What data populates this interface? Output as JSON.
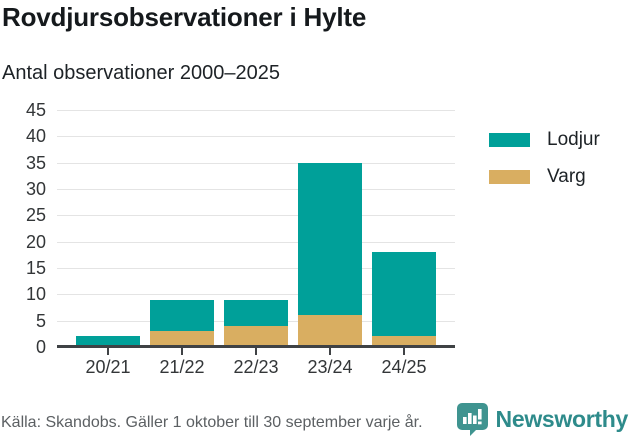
{
  "header": {
    "title": "Rovdjursobservationer i Hylte",
    "subtitle": "Antal observationer 2000–2025"
  },
  "chart_data": {
    "type": "bar",
    "stacked": true,
    "categories": [
      "20/21",
      "21/22",
      "22/23",
      "23/24",
      "24/25"
    ],
    "series": [
      {
        "name": "Lodjur",
        "color": "#00a099",
        "values": [
          2,
          6,
          5,
          29,
          16
        ]
      },
      {
        "name": "Varg",
        "color": "#d9ae61",
        "values": [
          0,
          3,
          4,
          6,
          2
        ]
      }
    ],
    "stack_totals": [
      2,
      9,
      9,
      35,
      18
    ],
    "title": "Rovdjursobservationer i Hylte",
    "subtitle": "Antal observationer 2000–2025",
    "xlabel": "",
    "ylabel": "",
    "ylim": [
      0,
      45
    ],
    "ytick_step": 5,
    "grid": true,
    "legend_position": "right",
    "axis_color": "#3f4245",
    "gridline_color": "#e4e4e4"
  },
  "footer": {
    "source": "Källa: Skandobs. Gäller 1 oktober till 30 september varje år.",
    "brand": "Newsworthy",
    "brand_color": "#2e8b8b",
    "brand_icon": "bar-chart-speech-bubble-icon",
    "brand_icon_color": "#3f9490"
  }
}
